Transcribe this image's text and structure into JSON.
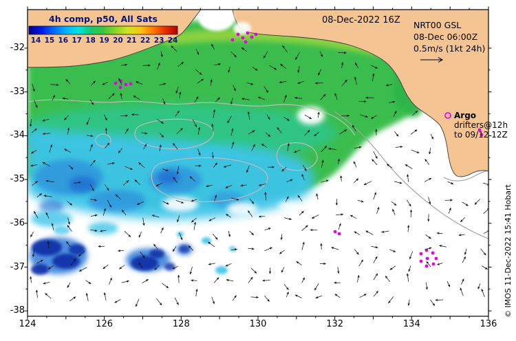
{
  "header": {
    "colorbar_title": "4h comp, p50, All Sats",
    "datetime": "08-Dec-2022 16Z"
  },
  "legend": {
    "line1": "NRT00 GSL",
    "line2": "08-Dec 06:00Z",
    "line3": "0.5m/s (1kt 24h)"
  },
  "annotations": {
    "argo": "Argo",
    "drifters": "drifters@12h",
    "drifters_to": "to 09/12 12Z",
    "copyright": "© IMOS 11-Dec-2022 15:41 Hobart"
  },
  "colorbar": {
    "ticks": [
      "14",
      "15",
      "16",
      "17",
      "18",
      "19",
      "20",
      "21",
      "22",
      "23",
      "24"
    ],
    "gradient": [
      "#000090",
      "#0018e8",
      "#0068ff",
      "#00b4ff",
      "#00e4e0",
      "#16c878",
      "#3cc63c",
      "#8ad428",
      "#d2e41e",
      "#f8c410",
      "#ff7a00",
      "#e83000",
      "#b40000"
    ]
  },
  "axes": {
    "x_ticks": [
      "124",
      "126",
      "128",
      "130",
      "132",
      "134",
      "136"
    ],
    "y_ticks": [
      "-32",
      "-33",
      "-34",
      "-35",
      "-36",
      "-37",
      "-38"
    ]
  },
  "map": {
    "land_color": "#f5c493",
    "sea_color": "#ffffff",
    "marker_color": "#e800e8",
    "contour_color": "#bdbdbd",
    "vector_color": "#101010",
    "markers": [
      [
        346,
        50
      ],
      [
        353,
        55
      ],
      [
        360,
        48
      ],
      [
        366,
        54
      ],
      [
        372,
        50
      ],
      [
        357,
        61
      ],
      [
        338,
        58
      ],
      [
        168,
        121
      ],
      [
        176,
        118
      ],
      [
        183,
        123
      ],
      [
        175,
        127
      ],
      [
        190,
        122
      ],
      [
        487,
        337
      ],
      [
        493,
        340
      ],
      [
        612,
        369
      ],
      [
        620,
        364
      ],
      [
        629,
        368
      ],
      [
        634,
        376
      ],
      [
        630,
        384
      ],
      [
        620,
        387
      ],
      [
        612,
        380
      ],
      [
        621,
        376
      ],
      [
        697,
        189
      ],
      [
        700,
        196
      ]
    ],
    "argo_circle": [
      651,
      168
    ]
  },
  "chart_data": {
    "type": "heatmap",
    "title": "4h comp, p50, All Sats",
    "valid_time": "08-Dec-2022 16Z",
    "product_lines": [
      "NRT00 GSL",
      "08-Dec 06:00Z",
      "0.5m/s (1kt 24h)"
    ],
    "x_ticks": [
      124,
      126,
      128,
      130,
      132,
      134,
      136
    ],
    "y_ticks": [
      -32,
      -33,
      -34,
      -35,
      -36,
      -37,
      -38
    ],
    "colorbar_min": 14,
    "colorbar_max": 24,
    "colorbar_tick_step": 1,
    "overlays": [
      "current vectors",
      "contours",
      "Argo",
      "drifters@12h to 09/12 12Z"
    ]
  }
}
